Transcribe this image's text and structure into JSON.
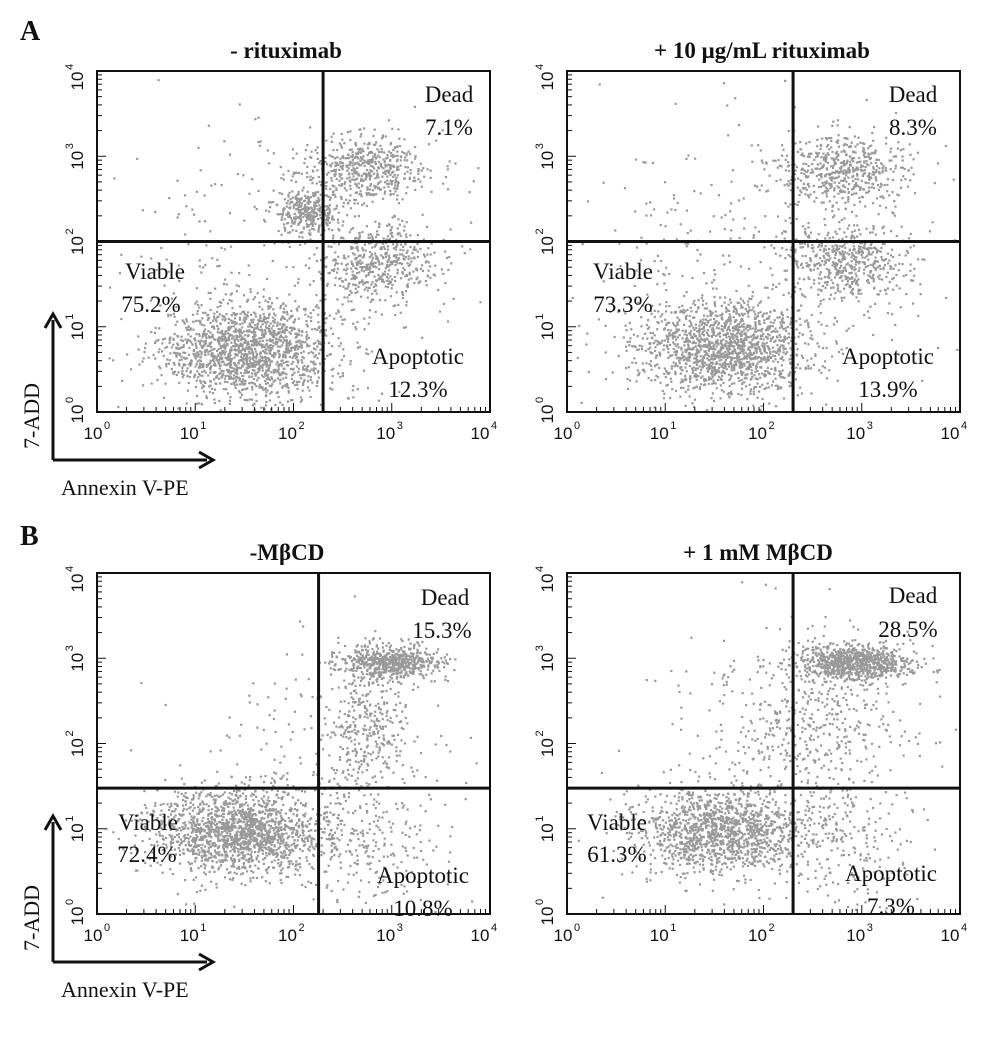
{
  "chart_data": [
    {
      "type": "scatter",
      "panel": "A",
      "title": "- rituximab",
      "xlabel": "Annexin V-PE",
      "ylabel": "7-ADD",
      "xscale": "log",
      "yscale": "log",
      "xlim": [
        1,
        10000
      ],
      "ylim": [
        1,
        10000
      ],
      "x_ticks": [
        "10",
        "10",
        "10",
        "10",
        "10"
      ],
      "x_tick_exps": [
        "0",
        "1",
        "2",
        "3",
        "4"
      ],
      "y_ticks": [
        "10",
        "10",
        "10",
        "10",
        "10"
      ],
      "y_tick_exps": [
        "0",
        "1",
        "2",
        "3",
        "4"
      ],
      "gate": {
        "x": 200,
        "y": 100
      },
      "quadrants": {
        "dead": {
          "label": "Dead",
          "value": "7.1%"
        },
        "viable": {
          "label": "Viable",
          "value": "75.2%"
        },
        "apoptotic": {
          "label": "Apoptotic",
          "value": "12.3%"
        }
      },
      "point_color": "#999999",
      "clusters": [
        {
          "n": 1600,
          "cx": 1.55,
          "cy": 0.72,
          "sx": 0.45,
          "sy": 0.28
        },
        {
          "n": 320,
          "cx": 2.15,
          "cy": 2.35,
          "sx": 0.15,
          "sy": 0.14
        },
        {
          "n": 520,
          "cx": 2.75,
          "cy": 2.85,
          "sx": 0.33,
          "sy": 0.2
        },
        {
          "n": 480,
          "cx": 2.85,
          "cy": 1.75,
          "sx": 0.3,
          "sy": 0.22
        },
        {
          "n": 260,
          "cx": 2.0,
          "cy": 2.0,
          "sx": 1.0,
          "sy": 0.75
        }
      ]
    },
    {
      "type": "scatter",
      "panel": "A",
      "title": "+ 10 μg/mL rituximab",
      "xlabel": "",
      "ylabel": "",
      "xscale": "log",
      "yscale": "log",
      "xlim": [
        1,
        10000
      ],
      "ylim": [
        1,
        10000
      ],
      "x_ticks": [
        "10",
        "10",
        "10",
        "10",
        "10"
      ],
      "x_tick_exps": [
        "0",
        "1",
        "2",
        "3",
        "4"
      ],
      "y_ticks": [
        "10",
        "10",
        "10",
        "10",
        "10"
      ],
      "y_tick_exps": [
        "0",
        "1",
        "2",
        "3",
        "4"
      ],
      "gate": {
        "x": 200,
        "y": 100
      },
      "quadrants": {
        "dead": {
          "label": "Dead",
          "value": "8.3%"
        },
        "viable": {
          "label": "Viable",
          "value": "73.3%"
        },
        "apoptotic": {
          "label": "Apoptotic",
          "value": "13.9%"
        }
      },
      "point_color": "#999999",
      "clusters": [
        {
          "n": 1550,
          "cx": 1.6,
          "cy": 0.75,
          "sx": 0.45,
          "sy": 0.28
        },
        {
          "n": 520,
          "cx": 2.8,
          "cy": 2.85,
          "sx": 0.33,
          "sy": 0.2
        },
        {
          "n": 500,
          "cx": 2.85,
          "cy": 1.75,
          "sx": 0.3,
          "sy": 0.22
        },
        {
          "n": 300,
          "cx": 2.0,
          "cy": 2.0,
          "sx": 1.0,
          "sy": 0.75
        }
      ]
    },
    {
      "type": "scatter",
      "panel": "B",
      "title": "-MβCD",
      "xlabel": "Annexin V-PE",
      "ylabel": "7-ADD",
      "xscale": "log",
      "yscale": "log",
      "xlim": [
        1,
        10000
      ],
      "ylim": [
        1,
        10000
      ],
      "x_ticks": [
        "10",
        "10",
        "10",
        "10",
        "10"
      ],
      "x_tick_exps": [
        "0",
        "1",
        "2",
        "3",
        "4"
      ],
      "y_ticks": [
        "10",
        "10",
        "10",
        "10",
        "10"
      ],
      "y_tick_exps": [
        "0",
        "1",
        "2",
        "3",
        "4"
      ],
      "gate": {
        "x": 180,
        "y": 30
      },
      "quadrants": {
        "dead": {
          "label": "Dead",
          "value": "15.3%"
        },
        "viable": {
          "label": "Viable",
          "value": "72.4%"
        },
        "apoptotic": {
          "label": "Apoptotic",
          "value": "10.8%"
        }
      },
      "point_color": "#999999",
      "clusters": [
        {
          "n": 1650,
          "cx": 1.45,
          "cy": 0.95,
          "sx": 0.45,
          "sy": 0.25
        },
        {
          "n": 600,
          "cx": 3.0,
          "cy": 2.95,
          "sx": 0.25,
          "sy": 0.1
        },
        {
          "n": 320,
          "cx": 2.75,
          "cy": 2.2,
          "sx": 0.2,
          "sy": 0.45
        },
        {
          "n": 200,
          "cx": 2.3,
          "cy": 1.8,
          "sx": 0.7,
          "sy": 0.6
        },
        {
          "n": 200,
          "cx": 2.8,
          "cy": 0.8,
          "sx": 0.35,
          "sy": 0.4
        }
      ]
    },
    {
      "type": "scatter",
      "panel": "B",
      "title": "+ 1 mM MβCD",
      "xlabel": "",
      "ylabel": "",
      "xscale": "log",
      "yscale": "log",
      "xlim": [
        1,
        10000
      ],
      "ylim": [
        1,
        10000
      ],
      "x_ticks": [
        "10",
        "10",
        "10",
        "10",
        "10"
      ],
      "x_tick_exps": [
        "0",
        "1",
        "2",
        "3",
        "4"
      ],
      "y_ticks": [
        "10",
        "10",
        "10",
        "10",
        "10"
      ],
      "y_tick_exps": [
        "0",
        "1",
        "2",
        "3",
        "4"
      ],
      "gate": {
        "x": 200,
        "y": 30
      },
      "quadrants": {
        "dead": {
          "label": "Dead",
          "value": "28.5%"
        },
        "viable": {
          "label": "Viable",
          "value": "61.3%"
        },
        "apoptotic": {
          "label": "Apoptotic",
          "value": "7.3%"
        }
      },
      "point_color": "#999999",
      "clusters": [
        {
          "n": 1350,
          "cx": 1.55,
          "cy": 0.95,
          "sx": 0.45,
          "sy": 0.25
        },
        {
          "n": 850,
          "cx": 2.95,
          "cy": 2.95,
          "sx": 0.28,
          "sy": 0.1
        },
        {
          "n": 380,
          "cx": 2.5,
          "cy": 2.3,
          "sx": 0.45,
          "sy": 0.5
        },
        {
          "n": 180,
          "cx": 2.8,
          "cy": 0.8,
          "sx": 0.35,
          "sy": 0.4
        },
        {
          "n": 200,
          "cx": 2.2,
          "cy": 1.8,
          "sx": 0.8,
          "sy": 0.7
        }
      ]
    }
  ],
  "panels": {
    "A": "A",
    "B": "B"
  }
}
